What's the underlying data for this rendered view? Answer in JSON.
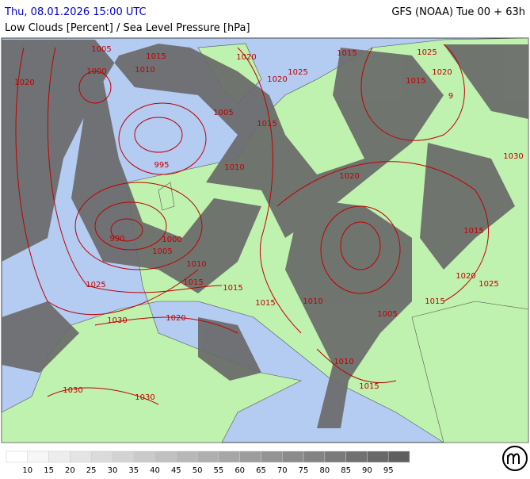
{
  "header": {
    "title": "Thu, 08.01.2026 15:00 UTC",
    "model": "GFS (NOAA) Tue 00 + 63h",
    "subtitle": "Low Clouds [Percent] / Sea Level Pressure [hPa]"
  },
  "isobar_labels": [
    1005,
    1015,
    1020,
    1015,
    1025,
    1020,
    1000,
    1010,
    1025,
    1020,
    1015,
    1020,
    9,
    1005,
    1015,
    995,
    1010,
    1020,
    1030,
    990,
    1000,
    1005,
    1010,
    1015,
    1025,
    1015,
    1015,
    1020,
    1025,
    1015,
    1015,
    1010,
    1030,
    1020,
    1005,
    1010,
    1015,
    1030,
    1030
  ],
  "legend": {
    "labels": [
      10,
      15,
      20,
      25,
      30,
      35,
      40,
      45,
      50,
      55,
      60,
      65,
      70,
      75,
      80,
      85,
      90,
      95
    ]
  }
}
